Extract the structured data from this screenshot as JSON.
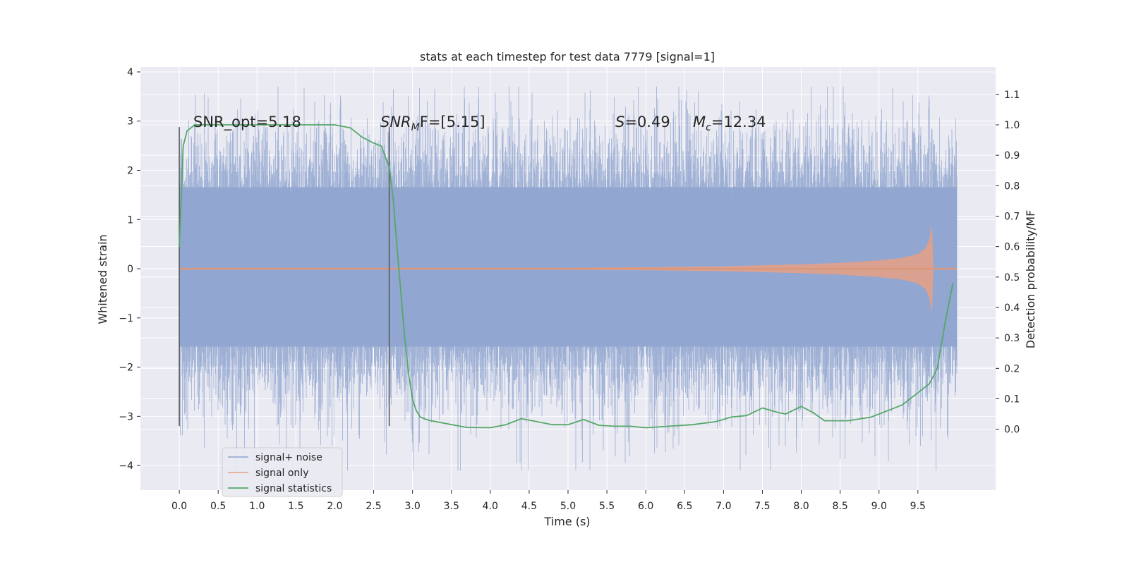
{
  "chart_data": {
    "type": "line",
    "title": "stats at each timestep for test data 7779 [signal=1]",
    "xlabel": "Time (s)",
    "ylabel": "Whitened strain",
    "ylabel_right": "Detection probability/MF",
    "xlim": [
      -0.5,
      10.5
    ],
    "ylim": [
      -4.5,
      4.1
    ],
    "ylim_right": [
      -0.2,
      1.19
    ],
    "x_ticks": [
      "0.0",
      "0.5",
      "1.0",
      "1.5",
      "2.0",
      "2.5",
      "3.0",
      "3.5",
      "4.0",
      "4.5",
      "5.0",
      "5.5",
      "6.0",
      "6.5",
      "7.0",
      "7.5",
      "8.0",
      "8.5",
      "9.0",
      "9.5"
    ],
    "y_ticks": [
      "4",
      "3",
      "2",
      "1",
      "0",
      "−1",
      "−2",
      "−3",
      "−4"
    ],
    "y_ticks_right": [
      "1.1",
      "1.0",
      "0.9",
      "0.8",
      "0.7",
      "0.6",
      "0.5",
      "0.4",
      "0.3",
      "0.2",
      "0.1",
      "0.0"
    ],
    "grid": true,
    "legend_position": "lower-left",
    "legend": [
      "signal+ noise",
      "signal only",
      "signal statistics"
    ],
    "annotations": {
      "snr_opt": "SNR_opt=5.18",
      "snr_mf_main": "SNR",
      "snr_mf_sub": "M",
      "snr_mf_rest": "F=[5.15]",
      "s_sym": "S",
      "s_val": "=0.49",
      "mc_sym": "M",
      "mc_sub": "c",
      "mc_val": "=12.34"
    },
    "vertical_markers_x": [
      0.0,
      2.7
    ],
    "series": [
      {
        "name": "signal+ noise",
        "color": "#8fa4cf",
        "description_of_values": "noisy whitened strain, roughly gaussian with sigma≈1 and peaks ranging from about -4.1 to +3.7",
        "x_range": [
          0.0,
          10.0
        ],
        "envelope_upper": 2.3,
        "envelope_lower": -2.2
      },
      {
        "name": "signal only",
        "color": "#dd8452",
        "x": [
          0.0,
          5.0,
          6.0,
          7.0,
          8.0,
          8.5,
          9.0,
          9.3,
          9.5,
          9.6,
          9.65,
          9.68,
          9.7,
          10.0
        ],
        "amplitude": [
          0.02,
          0.02,
          0.03,
          0.05,
          0.09,
          0.12,
          0.17,
          0.22,
          0.3,
          0.42,
          0.6,
          0.9,
          0.02,
          0.02
        ]
      },
      {
        "name": "signal statistics",
        "color": "#55a868",
        "axis": "right",
        "x": [
          0.0,
          0.05,
          0.1,
          0.2,
          0.4,
          0.8,
          1.2,
          1.6,
          2.0,
          2.2,
          2.35,
          2.5,
          2.6,
          2.7,
          2.75,
          2.8,
          2.85,
          2.9,
          2.95,
          3.0,
          3.05,
          3.1,
          3.2,
          3.4,
          3.7,
          4.0,
          4.2,
          4.4,
          4.6,
          4.8,
          5.0,
          5.2,
          5.4,
          5.6,
          5.8,
          6.0,
          6.3,
          6.6,
          6.9,
          7.1,
          7.3,
          7.5,
          7.7,
          7.8,
          8.0,
          8.15,
          8.3,
          8.6,
          8.9,
          9.1,
          9.3,
          9.5,
          9.65,
          9.75,
          9.85,
          9.95
        ],
        "values": [
          0.6,
          0.93,
          0.98,
          1.0,
          1.0,
          1.0,
          1.0,
          1.0,
          1.0,
          0.99,
          0.96,
          0.94,
          0.93,
          0.86,
          0.76,
          0.6,
          0.45,
          0.3,
          0.18,
          0.1,
          0.06,
          0.04,
          0.03,
          0.02,
          0.006,
          0.005,
          0.015,
          0.035,
          0.025,
          0.015,
          0.015,
          0.032,
          0.013,
          0.01,
          0.01,
          0.005,
          0.01,
          0.015,
          0.025,
          0.04,
          0.045,
          0.07,
          0.055,
          0.05,
          0.075,
          0.055,
          0.028,
          0.028,
          0.04,
          0.06,
          0.08,
          0.12,
          0.15,
          0.2,
          0.35,
          0.48
        ]
      }
    ]
  }
}
